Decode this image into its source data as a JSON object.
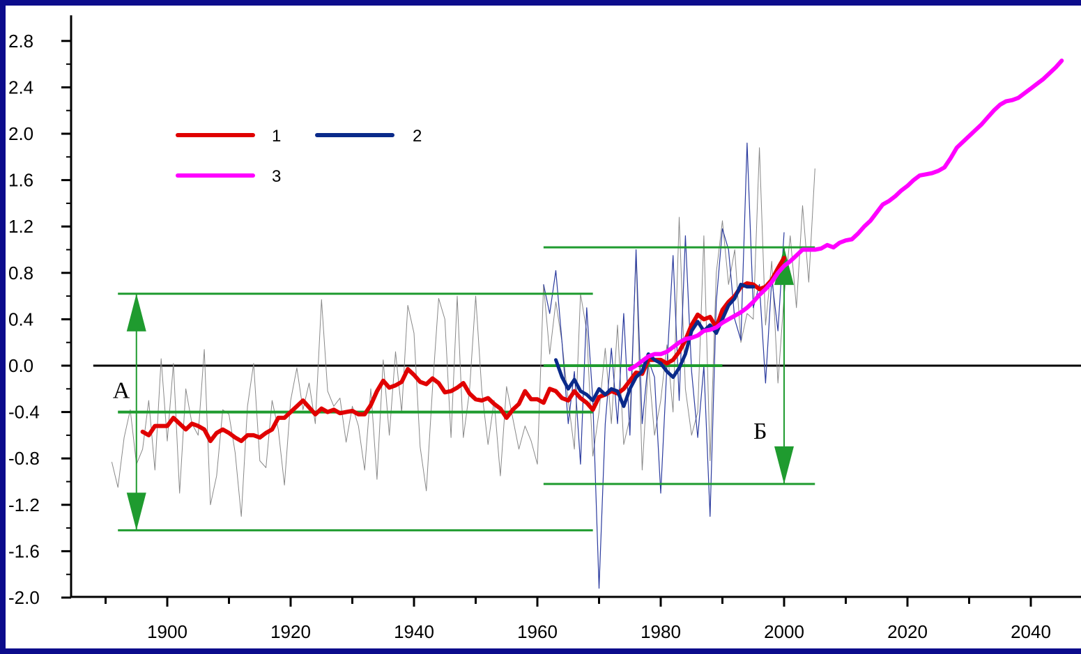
{
  "chart_data": {
    "type": "line",
    "title": "",
    "xlabel": "",
    "ylabel": "",
    "xlim": [
      1887,
      2050
    ],
    "ylim": [
      -2.0,
      3.0
    ],
    "x_ticks": [
      "1900",
      "1920",
      "1940",
      "1960",
      "1980",
      "2000",
      "2020",
      "2040"
    ],
    "y_ticks": [
      "2.8",
      "2.4",
      "2.0",
      "1.6",
      "1.2",
      "0.8",
      "0.4",
      "0.0",
      "-0.4",
      "-0.8",
      "-1.2",
      "-1.6",
      "-2.0"
    ],
    "legend": [
      {
        "label": "1",
        "color": "#e00000"
      },
      {
        "label": "2",
        "color": "#0a2a8a"
      },
      {
        "label": "3",
        "color": "#ff00ff"
      }
    ],
    "region_labels": [
      "А",
      "Б"
    ],
    "series": [
      {
        "name": "1",
        "color": "#e00000",
        "x": [
          1896,
          1897,
          1898,
          1899,
          1900,
          1901,
          1902,
          1903,
          1904,
          1905,
          1906,
          1907,
          1908,
          1909,
          1910,
          1911,
          1912,
          1913,
          1914,
          1915,
          1916,
          1917,
          1918,
          1919,
          1920,
          1921,
          1922,
          1923,
          1924,
          1925,
          1926,
          1927,
          1928,
          1929,
          1930,
          1931,
          1932,
          1933,
          1934,
          1935,
          1936,
          1937,
          1938,
          1939,
          1940,
          1941,
          1942,
          1943,
          1944,
          1945,
          1946,
          1947,
          1948,
          1949,
          1950,
          1951,
          1952,
          1953,
          1954,
          1955,
          1956,
          1957,
          1958,
          1959,
          1960,
          1961,
          1962,
          1963,
          1964,
          1965,
          1966,
          1967,
          1968,
          1969,
          1970,
          1971,
          1972,
          1973,
          1974,
          1975,
          1976,
          1977,
          1978,
          1979,
          1980,
          1981,
          1982,
          1983,
          1984,
          1985,
          1986,
          1987,
          1988,
          1989,
          1990,
          1991,
          1992,
          1993,
          1994,
          1995,
          1996,
          1997,
          1998,
          1999,
          2000
        ],
        "y": [
          -0.57,
          -0.6,
          -0.52,
          -0.52,
          -0.52,
          -0.45,
          -0.5,
          -0.55,
          -0.5,
          -0.52,
          -0.55,
          -0.65,
          -0.58,
          -0.55,
          -0.58,
          -0.62,
          -0.65,
          -0.6,
          -0.6,
          -0.62,
          -0.58,
          -0.55,
          -0.45,
          -0.45,
          -0.4,
          -0.35,
          -0.3,
          -0.36,
          -0.42,
          -0.37,
          -0.4,
          -0.38,
          -0.41,
          -0.4,
          -0.39,
          -0.42,
          -0.42,
          -0.34,
          -0.22,
          -0.13,
          -0.19,
          -0.17,
          -0.14,
          -0.03,
          -0.08,
          -0.14,
          -0.16,
          -0.11,
          -0.15,
          -0.23,
          -0.22,
          -0.19,
          -0.15,
          -0.24,
          -0.29,
          -0.3,
          -0.28,
          -0.33,
          -0.37,
          -0.45,
          -0.38,
          -0.33,
          -0.22,
          -0.29,
          -0.29,
          -0.32,
          -0.2,
          -0.22,
          -0.28,
          -0.3,
          -0.22,
          -0.28,
          -0.32,
          -0.38,
          -0.27,
          -0.25,
          -0.22,
          -0.24,
          -0.2,
          -0.13,
          -0.06,
          -0.07,
          0.05,
          0.05,
          0.05,
          0.02,
          0.05,
          0.12,
          0.22,
          0.35,
          0.44,
          0.4,
          0.42,
          0.33,
          0.48,
          0.55,
          0.6,
          0.68,
          0.71,
          0.7,
          0.66,
          0.68,
          0.74,
          0.84,
          0.93
        ]
      },
      {
        "name": "2",
        "color": "#0a2a8a",
        "x": [
          1963,
          1964,
          1965,
          1966,
          1967,
          1968,
          1969,
          1970,
          1971,
          1972,
          1973,
          1974,
          1975,
          1976,
          1977,
          1978,
          1979,
          1980,
          1981,
          1982,
          1983,
          1984,
          1985,
          1986,
          1987,
          1988,
          1989,
          1990,
          1991,
          1992,
          1993,
          1994,
          1995
        ],
        "y": [
          0.05,
          -0.1,
          -0.2,
          -0.12,
          -0.22,
          -0.25,
          -0.3,
          -0.2,
          -0.25,
          -0.2,
          -0.22,
          -0.35,
          -0.2,
          -0.1,
          -0.05,
          0.1,
          0.05,
          0.02,
          -0.05,
          -0.1,
          -0.02,
          0.1,
          0.3,
          0.38,
          0.3,
          0.35,
          0.28,
          0.4,
          0.52,
          0.58,
          0.7,
          0.68,
          0.68
        ]
      },
      {
        "name": "3",
        "color": "#ff00ff",
        "x": [
          1975,
          1976,
          1977,
          1978,
          1979,
          1980,
          1981,
          1982,
          1983,
          1984,
          1985,
          1986,
          1987,
          1988,
          1989,
          1990,
          1991,
          1992,
          1993,
          1994,
          1995,
          1996,
          1997,
          1998,
          1999,
          2000,
          2001,
          2002,
          2003,
          2004,
          2005,
          2006,
          2007,
          2008,
          2009,
          2010,
          2011,
          2012,
          2013,
          2014,
          2015,
          2016,
          2017,
          2018,
          2019,
          2020,
          2021,
          2022,
          2023,
          2024,
          2025,
          2026,
          2027,
          2028,
          2029,
          2030,
          2031,
          2032,
          2033,
          2034,
          2035,
          2036,
          2037,
          2038,
          2039,
          2040,
          2041,
          2042,
          2043,
          2044,
          2045
        ],
        "y": [
          -0.03,
          0.0,
          0.04,
          0.08,
          0.1,
          0.1,
          0.12,
          0.16,
          0.2,
          0.23,
          0.24,
          0.26,
          0.3,
          0.31,
          0.33,
          0.37,
          0.4,
          0.43,
          0.46,
          0.5,
          0.55,
          0.61,
          0.66,
          0.72,
          0.8,
          0.86,
          0.9,
          0.95,
          1.0,
          1.0,
          1.0,
          1.01,
          1.04,
          1.02,
          1.06,
          1.08,
          1.09,
          1.14,
          1.2,
          1.25,
          1.32,
          1.39,
          1.42,
          1.46,
          1.51,
          1.55,
          1.6,
          1.64,
          1.65,
          1.66,
          1.68,
          1.71,
          1.79,
          1.88,
          1.93,
          1.98,
          2.03,
          2.08,
          2.14,
          2.2,
          2.25,
          2.28,
          2.29,
          2.31,
          2.35,
          2.39,
          2.43,
          2.47,
          2.52,
          2.57,
          2.63
        ]
      },
      {
        "name": "",
        "color": "#888888",
        "x": [
          1891,
          1892,
          1893,
          1894,
          1895,
          1896,
          1897,
          1898,
          1899,
          1900,
          1901,
          1902,
          1903,
          1904,
          1905,
          1906,
          1907,
          1908,
          1909,
          1910,
          1911,
          1912,
          1913,
          1914,
          1915,
          1916,
          1917,
          1918,
          1919,
          1920,
          1921,
          1922,
          1923,
          1924,
          1925,
          1926,
          1927,
          1928,
          1929,
          1930,
          1931,
          1932,
          1933,
          1934,
          1935,
          1936,
          1937,
          1938,
          1939,
          1940,
          1941,
          1942,
          1943,
          1944,
          1945,
          1946,
          1947,
          1948,
          1949,
          1950,
          1951,
          1952,
          1953,
          1954,
          1955,
          1956,
          1957,
          1958,
          1959,
          1960,
          1961,
          1962,
          1963,
          1964,
          1965,
          1966,
          1967,
          1968,
          1969,
          1970,
          1971,
          1972,
          1973,
          1974,
          1975,
          1976,
          1977,
          1978,
          1979,
          1980,
          1981,
          1982,
          1983,
          1984,
          1985,
          1986,
          1987,
          1988,
          1989,
          1990,
          1991,
          1992,
          1993,
          1994,
          1995,
          1996,
          1997,
          1998,
          1999,
          2000,
          2001,
          2002,
          2003,
          2004,
          2005
        ],
        "y": [
          -0.83,
          -1.05,
          -0.62,
          -0.38,
          -0.85,
          -0.72,
          -0.3,
          -0.9,
          0.06,
          -0.65,
          0.02,
          -1.1,
          -0.2,
          -0.5,
          -0.6,
          0.14,
          -1.2,
          -0.95,
          -0.38,
          -0.42,
          -0.75,
          -1.3,
          -0.35,
          0.02,
          -0.82,
          -0.88,
          -0.3,
          -0.55,
          -1.03,
          -0.3,
          -0.02,
          -0.38,
          -0.15,
          -0.5,
          0.57,
          -0.22,
          -0.35,
          -0.28,
          -0.66,
          -0.35,
          -0.52,
          -0.9,
          -0.2,
          -0.98,
          0.05,
          -0.6,
          0.12,
          -0.4,
          0.52,
          0.28,
          -0.7,
          -1.08,
          -0.2,
          0.58,
          0.4,
          -0.62,
          0.6,
          -0.62,
          -0.22,
          0.6,
          -0.22,
          -0.68,
          -0.3,
          -0.95,
          -0.18,
          -0.45,
          -0.72,
          -0.52,
          -0.65,
          -0.85,
          0.7,
          0.1,
          0.55,
          0.2,
          -0.3,
          -0.72,
          0.62,
          0.3,
          -0.78,
          -0.4,
          0.15,
          -0.5,
          0.35,
          -0.68,
          -0.45,
          0.95,
          -0.9,
          0.02,
          -0.6,
          -0.3,
          0.18,
          -0.4,
          1.28,
          -0.2,
          -0.6,
          -0.4,
          1.12,
          -0.82,
          0.8,
          1.25,
          0.7,
          1.0,
          0.2,
          0.45,
          0.4,
          1.88,
          0.35,
          0.9,
          -0.15,
          0.6,
          1.12,
          0.5,
          1.38,
          0.72,
          1.7
        ]
      },
      {
        "name": "",
        "color": "#2a3a9e",
        "x": [
          1961,
          1962,
          1963,
          1964,
          1965,
          1966,
          1967,
          1968,
          1969,
          1970,
          1971,
          1972,
          1973,
          1974,
          1975,
          1976,
          1977,
          1978,
          1979,
          1980,
          1981,
          1982,
          1983,
          1984,
          1985,
          1986,
          1987,
          1988,
          1989,
          1990,
          1991,
          1992,
          1993,
          1994,
          1995,
          1996,
          1997,
          1998,
          1999,
          2000
        ],
        "y": [
          0.7,
          0.45,
          0.82,
          0.2,
          -0.5,
          -0.05,
          -0.85,
          0.5,
          -0.3,
          -1.92,
          -0.5,
          0.15,
          -0.5,
          0.45,
          -0.6,
          1.0,
          -0.5,
          0.05,
          -0.1,
          -1.1,
          0.0,
          0.95,
          -0.3,
          1.12,
          -0.05,
          -0.62,
          0.0,
          -1.3,
          0.55,
          1.18,
          1.0,
          0.4,
          0.22,
          1.92,
          0.5,
          0.7,
          -0.15,
          0.75,
          0.3,
          1.15
        ]
      }
    ],
    "horizontal_lines": [
      {
        "y": 0.62,
        "x_from": 1892,
        "x_to": 1969,
        "color": "#1f9b2f"
      },
      {
        "y": -0.4,
        "x_from": 1892,
        "x_to": 1969,
        "color": "#1f9b2f"
      },
      {
        "y": -1.42,
        "x_from": 1892,
        "x_to": 1969,
        "color": "#1f9b2f"
      },
      {
        "y": 1.02,
        "x_from": 1961,
        "x_to": 2005,
        "color": "#1f9b2f"
      },
      {
        "y": 0.0,
        "x_from": 1961,
        "x_to": 1990,
        "color": "#1f9b2f"
      },
      {
        "y": -1.02,
        "x_from": 1961,
        "x_to": 2005,
        "color": "#1f9b2f"
      }
    ],
    "range_arrows": [
      {
        "label": "А",
        "x": 1895,
        "y_center": -0.4,
        "y_top": 0.62,
        "y_bottom": -1.42
      },
      {
        "label": "Б",
        "x": 2000,
        "y_center": 0.0,
        "y_top": 1.02,
        "y_bottom": -1.02
      }
    ]
  }
}
